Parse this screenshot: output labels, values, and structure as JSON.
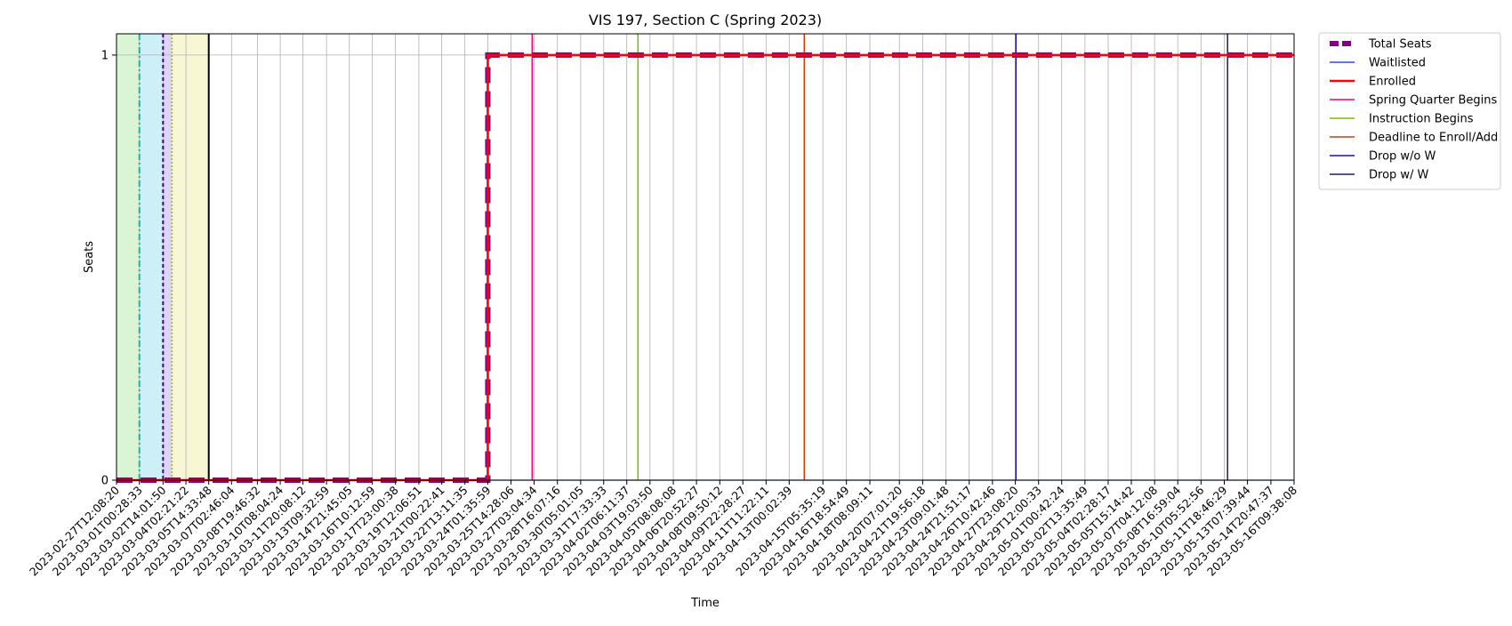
{
  "chart_data": {
    "type": "line",
    "title": "VIS 197, Section C (Spring 2023)",
    "xlabel": "Time",
    "ylabel": "Seats",
    "ylim": [
      0,
      1.05
    ],
    "yticks": [
      0,
      1
    ],
    "grid": true,
    "legend_position": "outside-top-right",
    "x": [
      "2023-02-27T12:08:20",
      "2023-03-01T00:28:33",
      "2023-03-02T14:01:50",
      "2023-03-04T02:21:22",
      "2023-03-05T14:33:48",
      "2023-03-07T02:46:04",
      "2023-03-08T19:46:32",
      "2023-03-10T08:04:24",
      "2023-03-11T20:08:12",
      "2023-03-13T09:32:59",
      "2023-03-14T21:45:05",
      "2023-03-16T10:12:59",
      "2023-03-17T23:00:38",
      "2023-03-19T12:06:51",
      "2023-03-21T00:22:41",
      "2023-03-22T13:11:35",
      "2023-03-24T01:35:59",
      "2023-03-25T14:28:06",
      "2023-03-27T03:04:34",
      "2023-03-28T16:07:16",
      "2023-03-30T05:01:05",
      "2023-03-31T17:33:33",
      "2023-04-02T06:11:37",
      "2023-04-03T19:03:50",
      "2023-04-05T08:08:08",
      "2023-04-06T20:52:27",
      "2023-04-08T09:50:12",
      "2023-04-09T22:28:27",
      "2023-04-11T11:22:11",
      "2023-04-13T00:02:39",
      "2023-04-15T05:35:19",
      "2023-04-16T18:54:49",
      "2023-04-18T08:09:11",
      "2023-04-20T07:01:20",
      "2023-04-21T19:56:18",
      "2023-04-23T09:01:48",
      "2023-04-24T21:51:17",
      "2023-04-26T10:42:46",
      "2023-04-27T23:08:20",
      "2023-04-29T12:00:33",
      "2023-05-01T00:42:24",
      "2023-05-02T13:35:49",
      "2023-05-04T02:28:17",
      "2023-05-05T15:14:42",
      "2023-05-07T04:12:08",
      "2023-05-08T16:59:04",
      "2023-05-10T05:52:56",
      "2023-05-11T18:46:29",
      "2023-05-13T07:39:44",
      "2023-05-14T20:47:37",
      "2023-05-16T09:38:08"
    ],
    "series": [
      {
        "name": "Total Seats",
        "color": "#800080",
        "style": "dashed-thick",
        "values": [
          0,
          0,
          0,
          0,
          0,
          0,
          0,
          0,
          0,
          0,
          0,
          0,
          0,
          0,
          0,
          0,
          1,
          1,
          1,
          1,
          1,
          1,
          1,
          1,
          1,
          1,
          1,
          1,
          1,
          1,
          1,
          1,
          1,
          1,
          1,
          1,
          1,
          1,
          1,
          1,
          1,
          1,
          1,
          1,
          1,
          1,
          1,
          1,
          1,
          1,
          1
        ]
      },
      {
        "name": "Waitlisted",
        "color": "#3344ee",
        "style": "solid-thin",
        "values": [
          0,
          0,
          0,
          0,
          0,
          0,
          0,
          0,
          0,
          0,
          0,
          0,
          0,
          0,
          0,
          0,
          0,
          0,
          0,
          0,
          0,
          0,
          0,
          0,
          0,
          0,
          0,
          0,
          0,
          0,
          0,
          0,
          0,
          0,
          0,
          0,
          0,
          0,
          0,
          0,
          0,
          0,
          0,
          0,
          0,
          0,
          0,
          0,
          0,
          0,
          0
        ]
      },
      {
        "name": "Enrolled",
        "color": "#ff0000",
        "style": "solid-thick",
        "values": [
          0,
          0,
          0,
          0,
          0,
          0,
          0,
          0,
          0,
          0,
          0,
          0,
          0,
          0,
          0,
          0,
          1,
          1,
          1,
          1,
          1,
          1,
          1,
          1,
          1,
          1,
          1,
          1,
          1,
          1,
          1,
          1,
          1,
          1,
          1,
          1,
          1,
          1,
          1,
          1,
          1,
          1,
          1,
          1,
          1,
          1,
          1,
          1,
          1,
          1,
          1
        ]
      }
    ],
    "event_lines": [
      {
        "name": "Spring Quarter Begins",
        "color": "#e6008a",
        "x": "2023-03-27T00:00:00"
      },
      {
        "name": "Instruction Begins",
        "color": "#7fb800",
        "x": "2023-04-03T00:00:00"
      },
      {
        "name": "Deadline to Enroll/Add",
        "color": "#d43b0c",
        "x": "2023-04-14T00:00:00"
      },
      {
        "name": "Drop w/o W",
        "color": "#1a0f9e",
        "x": "2023-04-28T00:00:00"
      },
      {
        "name": "Drop w/ W",
        "color": "#1b2350",
        "x": "2023-05-12T00:00:00"
      }
    ],
    "enrollment_periods": [
      {
        "color": "#d9f5d4",
        "from": "2023-02-27T12:08:20",
        "to": "2023-03-01T00:28:33"
      },
      {
        "color": "#cdeff7",
        "from": "2023-03-01T00:28:33",
        "to": "2023-03-02T14:01:50"
      },
      {
        "color": "#ddd4f7",
        "from": "2023-03-02T14:01:50",
        "to": "2023-03-03T04:00:00"
      },
      {
        "color": "#f7f7d4",
        "from": "2023-03-03T04:00:00",
        "to": "2023-03-05T14:33:48"
      }
    ],
    "period_markers": [
      {
        "color": "#20b2aa",
        "dash": "7,3,2,3",
        "x": "2023-03-01T00:28:33"
      },
      {
        "color": "#4b0082",
        "dash": "4,3",
        "x": "2023-03-02T14:01:50"
      },
      {
        "color": "#b5b85a",
        "dash": "2,2",
        "x": "2023-03-03T04:00:00"
      },
      {
        "color": "#000000",
        "dash": "",
        "x": "2023-03-05T14:33:48"
      }
    ]
  }
}
